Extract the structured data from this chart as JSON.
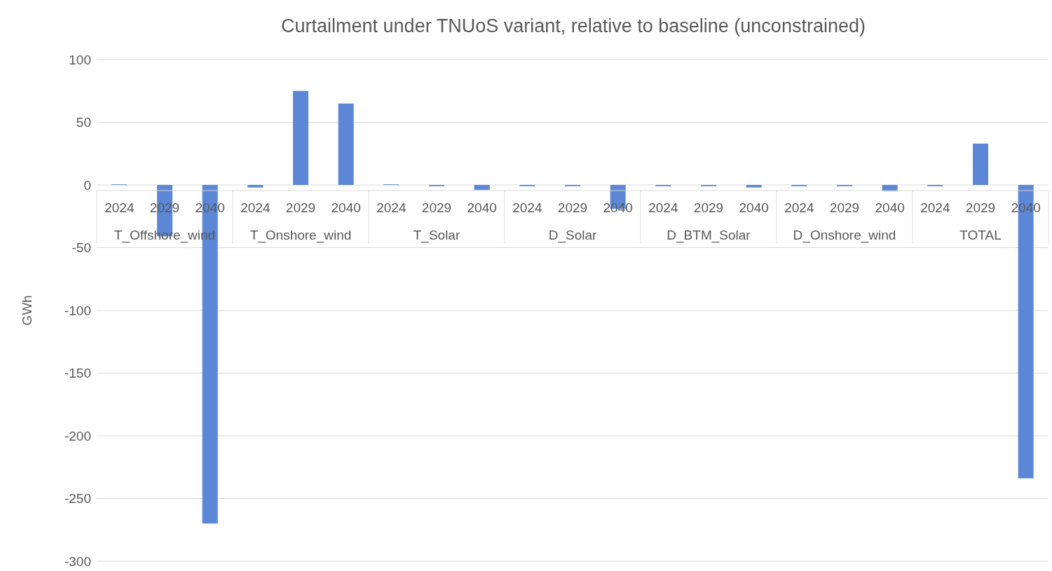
{
  "chart_data": {
    "type": "bar",
    "title": "Curtailment under TNUoS variant, relative to baseline (unconstrained)",
    "ylabel": "GWh",
    "categories": [
      "2024",
      "2029",
      "2040",
      "2024",
      "2029",
      "2040",
      "2024",
      "2029",
      "2040",
      "2024",
      "2029",
      "2040",
      "2024",
      "2029",
      "2040",
      "2024",
      "2029",
      "2040",
      "2024",
      "2029",
      "2040"
    ],
    "annotations": [
      "T_Offshore_wind",
      "T_Onshore_wind",
      "T_Solar",
      "D_Solar",
      "D_BTM_Solar",
      "D_Onshore_wind",
      "TOTAL"
    ],
    "values": [
      0.5,
      -41,
      -270,
      -2,
      75,
      65,
      0.5,
      -1,
      -4,
      -1,
      -1,
      -19,
      -1,
      -1,
      -2,
      -1,
      -1,
      -5,
      -1,
      33,
      -234
    ],
    "color": "#5b87d6",
    "ylim": [
      -300,
      100
    ],
    "yticks": [
      -300,
      -250,
      -200,
      -150,
      -100,
      -50,
      0,
      50,
      100
    ],
    "grid": "y",
    "legend": false
  }
}
